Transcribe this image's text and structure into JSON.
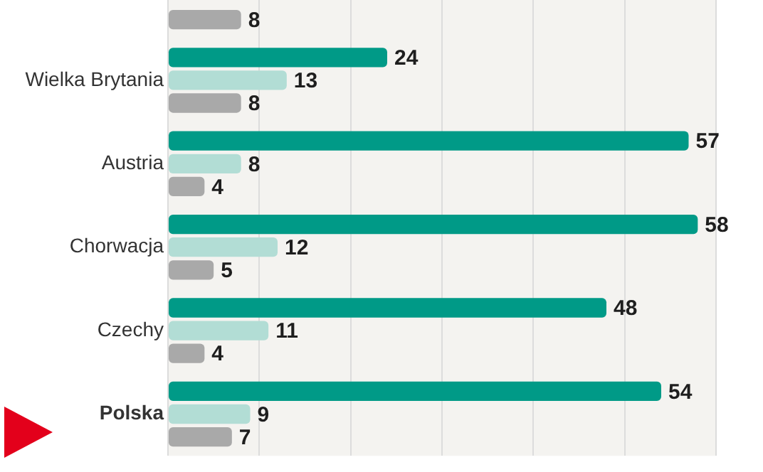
{
  "chart_data": {
    "type": "bar",
    "orientation": "horizontal",
    "categories": [
      null,
      "Wielka Brytania",
      "Austria",
      "Chorwacja",
      "Czechy",
      "Polska"
    ],
    "series": [
      {
        "color": "#009a87",
        "values": [
          null,
          24,
          57,
          58,
          48,
          54
        ]
      },
      {
        "color": "#b2ddd5",
        "values": [
          null,
          13,
          8,
          12,
          11,
          9
        ]
      },
      {
        "color": "#a9a9a9",
        "values": [
          8,
          8,
          4,
          5,
          4,
          7
        ]
      }
    ],
    "xlim": [
      0,
      60
    ],
    "grid": "x",
    "tick_labels": "y",
    "legend": false,
    "data_labels": true
  }
}
